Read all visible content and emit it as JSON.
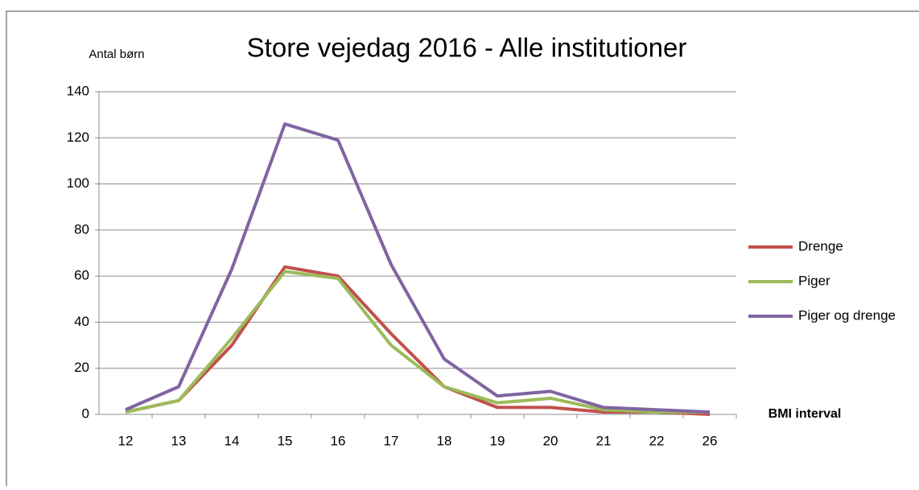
{
  "chart_data": {
    "type": "line",
    "title": "Store vejedag 2016 - Alle institutioner",
    "y_label": "Antal børn",
    "x_label": "BMI interval",
    "categories": [
      "12",
      "13",
      "14",
      "15",
      "16",
      "17",
      "18",
      "19",
      "20",
      "21",
      "22",
      "26"
    ],
    "series": [
      {
        "name": "Drenge",
        "color": "#c0504d",
        "values": [
          1,
          6,
          30,
          64,
          60,
          35,
          12,
          3,
          3,
          1,
          1,
          0
        ]
      },
      {
        "name": "Piger",
        "color": "#9bbb59",
        "values": [
          1,
          6,
          33,
          62,
          59,
          30,
          12,
          5,
          7,
          2,
          1,
          1
        ]
      },
      {
        "name": "Piger og drenge",
        "color": "#8064a2",
        "values": [
          2,
          12,
          63,
          126,
          119,
          65,
          24,
          8,
          10,
          3,
          2,
          1
        ]
      }
    ],
    "ylim": [
      0,
      140
    ],
    "yticks": [
      0,
      20,
      40,
      60,
      80,
      100,
      120,
      140
    ],
    "grid": true,
    "legend": "right"
  }
}
